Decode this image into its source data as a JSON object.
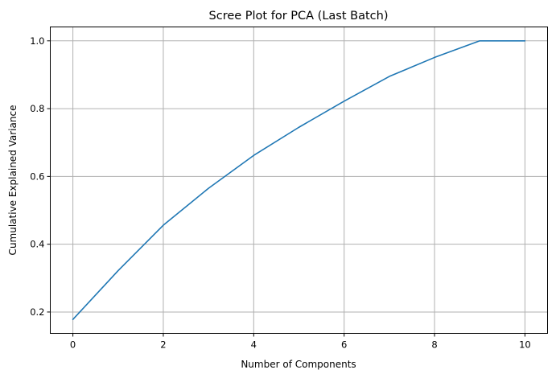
{
  "chart_data": {
    "type": "line",
    "title": "Scree Plot for PCA (Last Batch)",
    "xlabel": "Number of Components",
    "ylabel": "Cumulative Explained Variance",
    "xlim": [
      -0.5,
      10.5
    ],
    "ylim": [
      0.137,
      1.041
    ],
    "xticks": [
      0,
      2,
      4,
      6,
      8,
      10
    ],
    "xtick_labels": [
      "0",
      "2",
      "4",
      "6",
      "8",
      "10"
    ],
    "yticks": [
      0.2,
      0.4,
      0.6,
      0.8,
      1.0
    ],
    "ytick_labels": [
      "0.2",
      "0.4",
      "0.6",
      "0.8",
      "1.0"
    ],
    "grid": true,
    "series": [
      {
        "color": "#1f77b4",
        "x": [
          0,
          1,
          2,
          3,
          4,
          5,
          6,
          7,
          8,
          9,
          10
        ],
        "values": [
          0.178,
          0.322,
          0.456,
          0.565,
          0.662,
          0.745,
          0.822,
          0.895,
          0.951,
          1.0,
          1.0
        ]
      }
    ]
  }
}
